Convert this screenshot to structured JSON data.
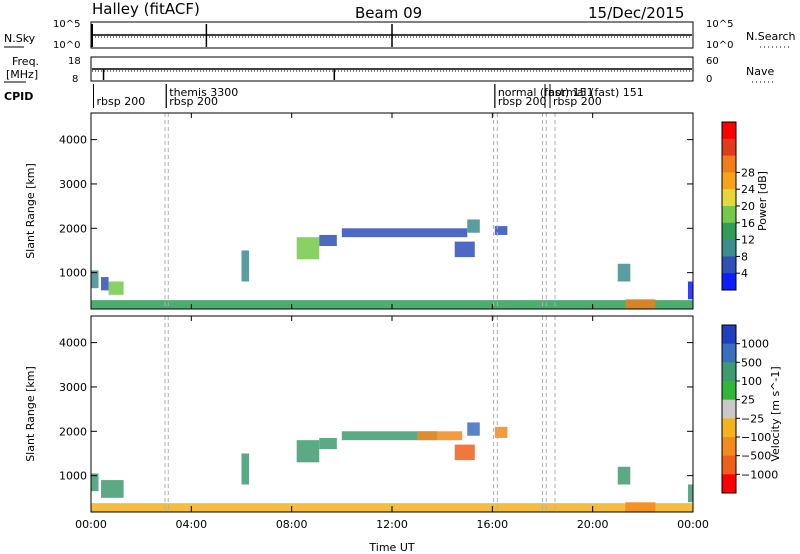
{
  "header": {
    "radar": "Halley (fitACF)",
    "beam": "Beam 09",
    "date": "15/Dec/2015"
  },
  "side_labels": {
    "nsky": "N.Sky",
    "freq_line1": "Freq.",
    "freq_line2": "[MHz]",
    "cpid": "CPID",
    "nsearch": "N.Search",
    "nave": "Nave",
    "nsky_ticks": [
      "10^5",
      "10^0"
    ],
    "nsearch_ticks": [
      "10^5",
      "10^0"
    ],
    "freq_ticks": [
      "18",
      "8"
    ],
    "nave_ticks": [
      "60",
      "0"
    ]
  },
  "cpid_labels": [
    {
      "t": 0.1,
      "row": 1,
      "text": "rbsp 200"
    },
    {
      "t": 3.0,
      "row": 0,
      "text": "themis 3300"
    },
    {
      "t": 3.0,
      "row": 1,
      "text": "rbsp 200"
    },
    {
      "t": 16.1,
      "row": 0,
      "text": "normal (fast) 151"
    },
    {
      "t": 16.1,
      "row": 1,
      "text": "rbsp 200"
    },
    {
      "t": 18.1,
      "row": 0,
      "text": "normal (fast) 151"
    },
    {
      "t": 18.3,
      "row": 1,
      "text": "rbsp 200"
    }
  ],
  "chart_data": [
    {
      "type": "heatmap",
      "name": "power",
      "xlabel": "",
      "ylabel": "Slant Range [km]",
      "xlim": [
        0,
        24
      ],
      "ylim": [
        180,
        4600
      ],
      "yticks": [
        "1000",
        "2000",
        "3000",
        "4000"
      ],
      "colorbar_label": "Power [dB]",
      "colorbar_ticks": [
        "4",
        "8",
        "12",
        "16",
        "20",
        "24",
        "28"
      ],
      "colorbar_colors": [
        "#0b1cff",
        "#2f4fb9",
        "#3d8c8e",
        "#2e9e57",
        "#74c84a",
        "#e6d63a",
        "#f5a418",
        "#f07c1a",
        "#e23b1c",
        "#ff0000"
      ],
      "cpid_change_times": [
        2.95,
        3.08,
        16.05,
        16.2,
        18.0,
        18.15,
        18.5
      ],
      "echo_segments": [
        {
          "t0": 0.0,
          "t1": 0.3,
          "r0": 650,
          "r1": 1050,
          "color": "#3d8c8e"
        },
        {
          "t0": 0.4,
          "t1": 0.7,
          "r0": 600,
          "r1": 900,
          "color": "#2f4fb9"
        },
        {
          "t0": 0.7,
          "t1": 1.3,
          "r0": 500,
          "r1": 800,
          "color": "#74c84a"
        },
        {
          "t0": 6.0,
          "t1": 6.3,
          "r0": 800,
          "r1": 1500,
          "color": "#3d8c8e"
        },
        {
          "t0": 8.2,
          "t1": 9.1,
          "r0": 1300,
          "r1": 1800,
          "color": "#74c84a"
        },
        {
          "t0": 9.1,
          "t1": 9.8,
          "r0": 1600,
          "r1": 1850,
          "color": "#2f4fb9"
        },
        {
          "t0": 10.0,
          "t1": 15.0,
          "r0": 1800,
          "r1": 2000,
          "color": "#2f4fb9"
        },
        {
          "t0": 14.5,
          "t1": 15.3,
          "r0": 1350,
          "r1": 1700,
          "color": "#2f4fb9"
        },
        {
          "t0": 15.0,
          "t1": 15.5,
          "r0": 1900,
          "r1": 2200,
          "color": "#3d8c8e"
        },
        {
          "t0": 16.1,
          "t1": 16.6,
          "r0": 1850,
          "r1": 2050,
          "color": "#2f4fb9"
        },
        {
          "t0": 21.0,
          "t1": 21.5,
          "r0": 800,
          "r1": 1200,
          "color": "#3d8c8e"
        },
        {
          "t0": 23.8,
          "t1": 24.0,
          "r0": 400,
          "r1": 800,
          "color": "#0b1cff"
        },
        {
          "t0": 0.0,
          "t1": 24.0,
          "r0": 180,
          "r1": 380,
          "color": "#2e9e57"
        },
        {
          "t0": 21.3,
          "t1": 22.5,
          "r0": 180,
          "r1": 400,
          "color": "#f07c1a"
        }
      ]
    },
    {
      "type": "heatmap",
      "name": "velocity",
      "xlabel": "Time UT",
      "ylabel": "Slant Range [km]",
      "xlim": [
        0,
        24
      ],
      "ylim": [
        180,
        4600
      ],
      "xticks": [
        "00:00",
        "04:00",
        "08:00",
        "12:00",
        "16:00",
        "20:00",
        "00:00"
      ],
      "yticks": [
        "1000",
        "2000",
        "3000",
        "4000"
      ],
      "colorbar_label": "Velocity [m s^-1]",
      "colorbar_ticks": [
        "1000",
        "500",
        "100",
        "25",
        "−25",
        "−100",
        "−500",
        "−1000"
      ],
      "colorbar_colors": [
        "#1f3fbf",
        "#3a6fc0",
        "#3f9a70",
        "#33b53a",
        "#c9c9c9",
        "#f3b21e",
        "#f28a1e",
        "#ef5f1a",
        "#ff0000"
      ],
      "cpid_change_times": [
        2.95,
        3.08,
        16.05,
        16.2,
        18.0,
        18.15,
        18.5
      ],
      "echo_segments": [
        {
          "t0": 0.0,
          "t1": 0.3,
          "r0": 650,
          "r1": 1050,
          "color": "#3f9a70"
        },
        {
          "t0": 0.4,
          "t1": 1.3,
          "r0": 500,
          "r1": 900,
          "color": "#3f9a70"
        },
        {
          "t0": 6.0,
          "t1": 6.3,
          "r0": 800,
          "r1": 1500,
          "color": "#3f9a70"
        },
        {
          "t0": 8.2,
          "t1": 9.1,
          "r0": 1300,
          "r1": 1800,
          "color": "#3f9a70"
        },
        {
          "t0": 9.1,
          "t1": 9.8,
          "r0": 1600,
          "r1": 1850,
          "color": "#3f9a70"
        },
        {
          "t0": 10.0,
          "t1": 13.8,
          "r0": 1800,
          "r1": 2000,
          "color": "#3f9a70"
        },
        {
          "t0": 13.0,
          "t1": 14.8,
          "r0": 1800,
          "r1": 2000,
          "color": "#f28a1e"
        },
        {
          "t0": 14.5,
          "t1": 15.3,
          "r0": 1350,
          "r1": 1700,
          "color": "#ef5f1a"
        },
        {
          "t0": 15.0,
          "t1": 15.5,
          "r0": 1900,
          "r1": 2200,
          "color": "#3a6fc0"
        },
        {
          "t0": 16.1,
          "t1": 16.6,
          "r0": 1850,
          "r1": 2100,
          "color": "#f28a1e"
        },
        {
          "t0": 21.0,
          "t1": 21.5,
          "r0": 800,
          "r1": 1200,
          "color": "#3f9a70"
        },
        {
          "t0": 23.8,
          "t1": 24.0,
          "r0": 400,
          "r1": 800,
          "color": "#3f9a70"
        },
        {
          "t0": 0.0,
          "t1": 24.0,
          "r0": 180,
          "r1": 380,
          "color": "#f3b21e"
        },
        {
          "t0": 21.3,
          "t1": 22.5,
          "r0": 180,
          "r1": 400,
          "color": "#f28a1e"
        }
      ]
    }
  ]
}
